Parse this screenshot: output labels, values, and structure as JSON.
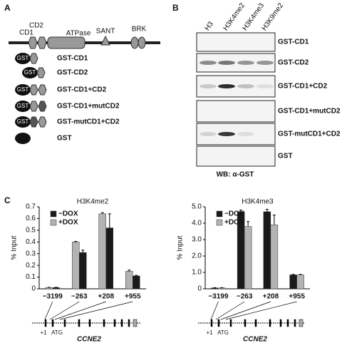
{
  "panel_a": {
    "label": "A",
    "domains": [
      "CD1",
      "CD2",
      "ATPase",
      "SANT",
      "BRK"
    ],
    "gst_tag": "GST",
    "constructs": [
      "GST-CD1",
      "GST-CD2",
      "GST-CD1+CD2",
      "GST-CD1+mutCD2",
      "GST-mutCD1+CD2",
      "GST"
    ]
  },
  "panel_b": {
    "label": "B",
    "columns": [
      "H3",
      "H3K4me2",
      "H3K4me3",
      "H3K9me2"
    ],
    "rows": [
      "GST-CD1",
      "GST-CD2",
      "GST-CD1+CD2",
      "GST-CD1+mutCD2",
      "GST-mutCD1+CD2",
      "GST"
    ],
    "footer": "WB: α-GST"
  },
  "panel_c_label": "C",
  "chart_data": [
    {
      "type": "bar",
      "title": "H3K4me2",
      "ylabel": "% Input",
      "bar_order": "reverse",
      "categories": [
        "−3199",
        "−263",
        "+208",
        "+955"
      ],
      "series": [
        {
          "name": "−DOX",
          "color": "#1a1a1a",
          "values": [
            0.01,
            0.31,
            0.52,
            0.11
          ],
          "errors": [
            0.003,
            0.02,
            0.12,
            0.005
          ]
        },
        {
          "name": "+DOX",
          "color": "#b3b3b3",
          "values": [
            0.01,
            0.4,
            0.64,
            0.15
          ],
          "errors": [
            0.003,
            0.005,
            0.01,
            0.01
          ]
        }
      ],
      "ylim": [
        0,
        0.7
      ],
      "yticks": [
        0,
        0.1,
        0.2,
        0.3,
        0.4,
        0.5,
        0.6,
        0.7
      ],
      "annotations": [
        "+1",
        "ATG",
        "CCNE2"
      ]
    },
    {
      "type": "bar",
      "title": "H3K4me3",
      "ylabel": "% Input",
      "bar_order": "normal",
      "categories": [
        "−3199",
        "−263",
        "+208",
        "+955"
      ],
      "series": [
        {
          "name": "−DOX",
          "color": "#1a1a1a",
          "values": [
            0.05,
            4.7,
            4.7,
            0.85
          ],
          "errors": [
            0.02,
            0.1,
            0.15,
            0.03
          ]
        },
        {
          "name": "+DOX",
          "color": "#b3b3b3",
          "values": [
            0.05,
            3.8,
            3.9,
            0.85
          ],
          "errors": [
            0.02,
            0.3,
            0.6,
            0.03
          ]
        }
      ],
      "ylim": [
        0,
        5
      ],
      "yticks": [
        0,
        {
          "value": 1,
          "label": "1.0"
        },
        {
          "value": 2,
          "label": "2.0"
        },
        {
          "value": 3,
          "label": "3.0"
        },
        {
          "value": 4,
          "label": "4.0"
        },
        {
          "value": 5,
          "label": "5.0"
        }
      ],
      "annotations": [
        "+1",
        "ATG",
        "CCNE2"
      ]
    }
  ]
}
